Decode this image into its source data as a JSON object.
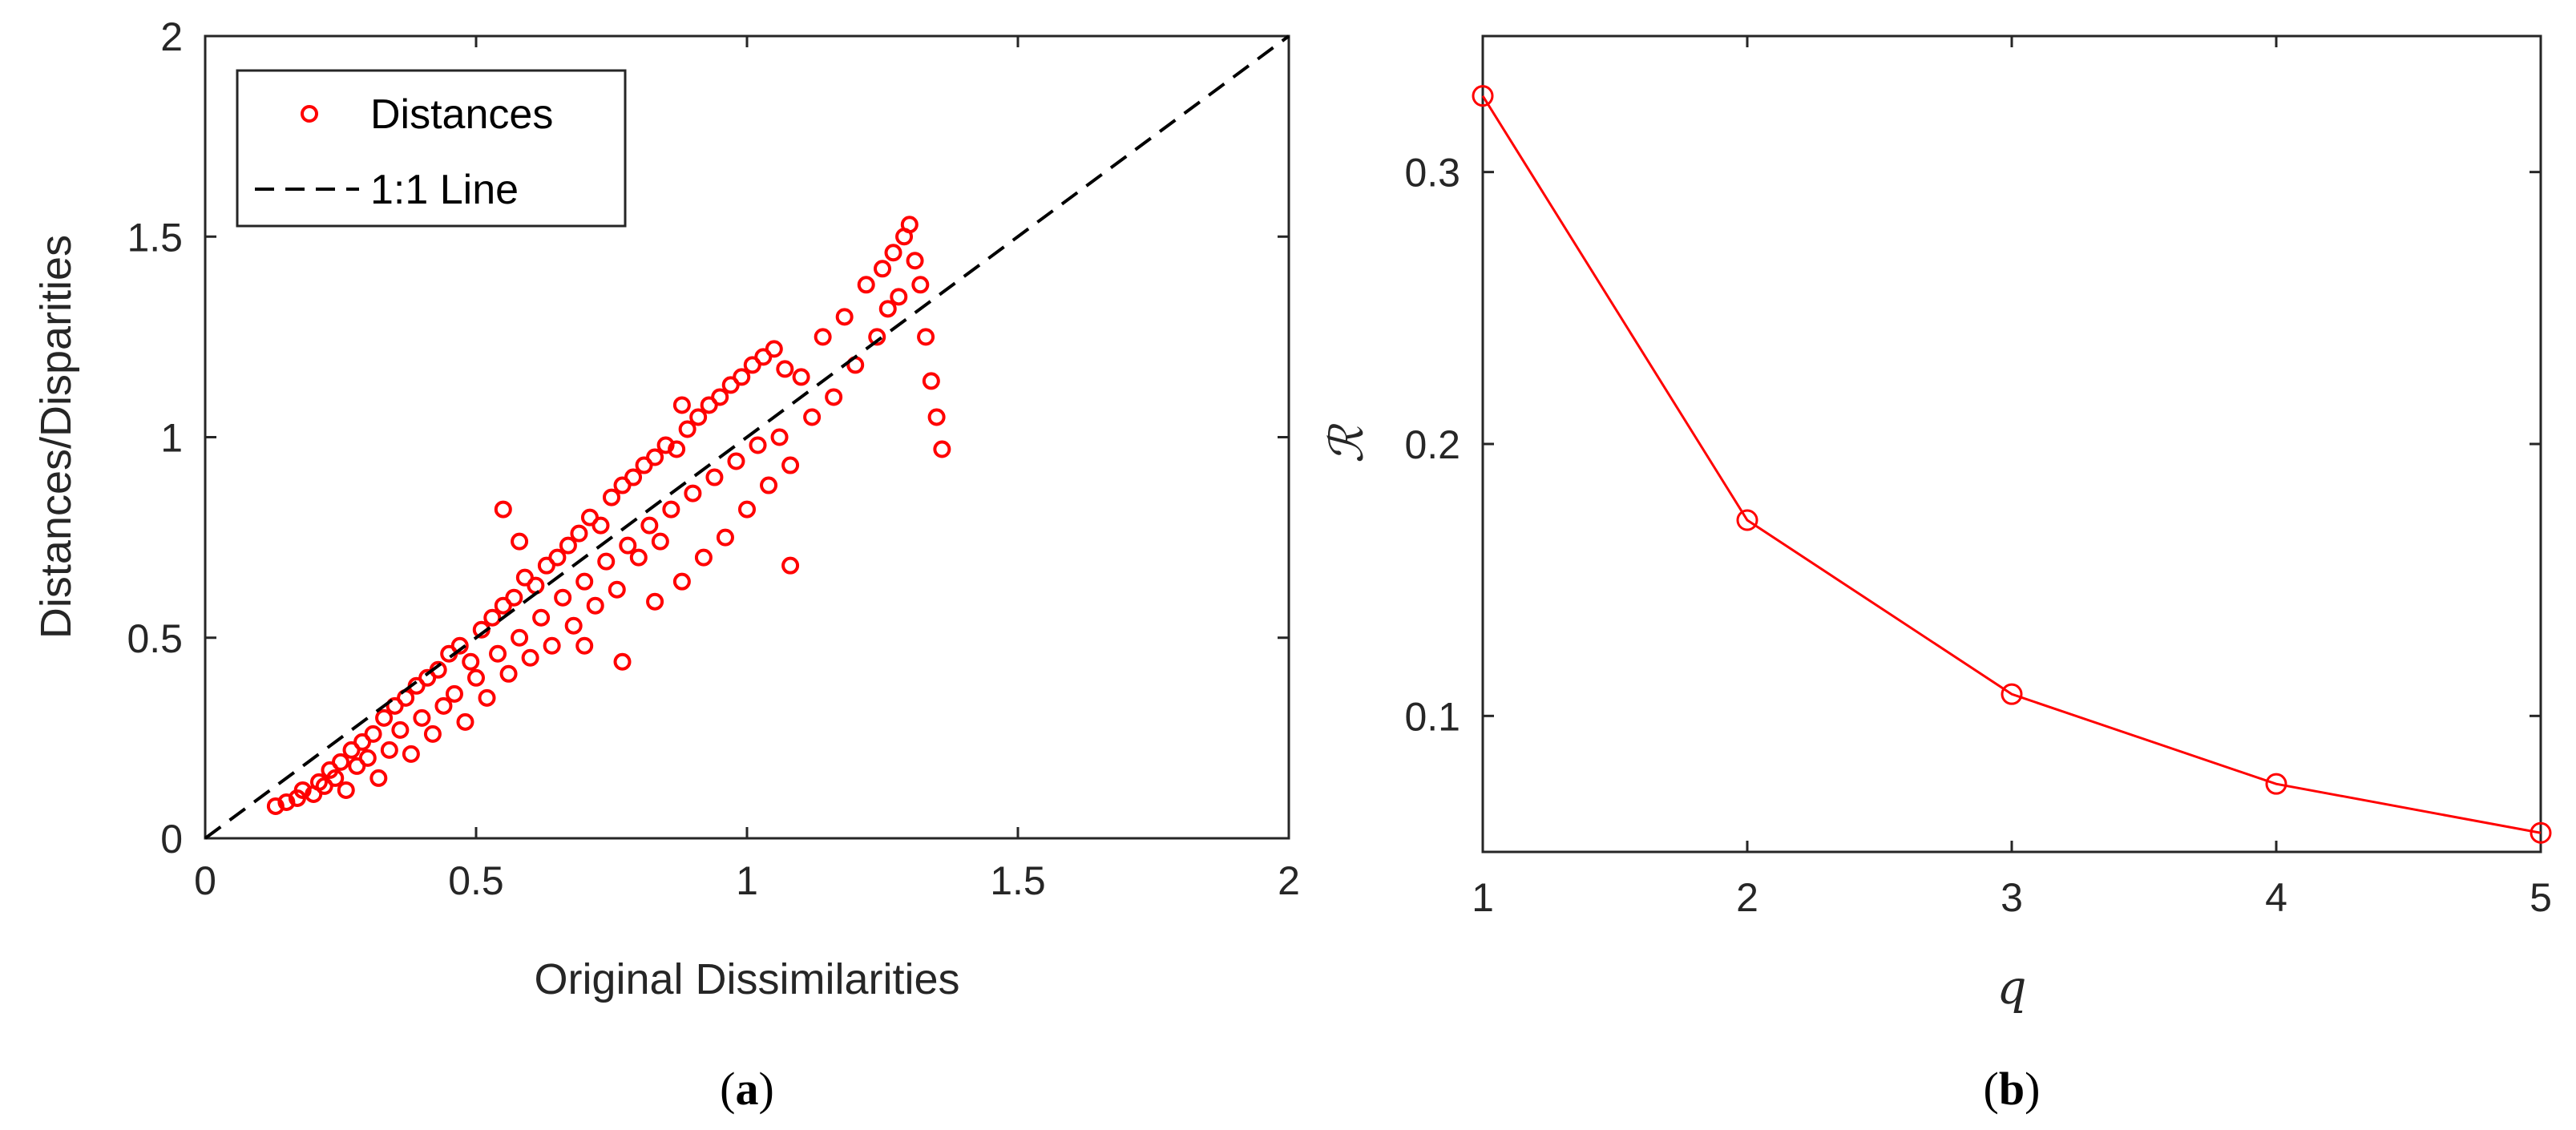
{
  "colors": {
    "series": "#ff0000",
    "axis": "#262626",
    "reference_line": "#000000"
  },
  "chart_data": [
    {
      "type": "scatter",
      "panel_caption": "a",
      "xlabel": "Original Dissimilarities",
      "ylabel": "Distances/Disparities",
      "xlim": [
        0,
        2
      ],
      "ylim": [
        0,
        2
      ],
      "xticks": [
        "0",
        "0.5",
        "1",
        "1.5",
        "2"
      ],
      "yticks": [
        "0",
        "0.5",
        "1",
        "1.5",
        "2"
      ],
      "legend_position": "top-left",
      "grid": false,
      "series": [
        {
          "name": "Distances",
          "marker": "open-circle",
          "color": "#ff0000",
          "points": [
            [
              0.13,
              0.08
            ],
            [
              0.15,
              0.09
            ],
            [
              0.17,
              0.1
            ],
            [
              0.18,
              0.12
            ],
            [
              0.2,
              0.11
            ],
            [
              0.21,
              0.14
            ],
            [
              0.22,
              0.13
            ],
            [
              0.23,
              0.17
            ],
            [
              0.24,
              0.15
            ],
            [
              0.25,
              0.19
            ],
            [
              0.26,
              0.12
            ],
            [
              0.27,
              0.22
            ],
            [
              0.28,
              0.18
            ],
            [
              0.29,
              0.24
            ],
            [
              0.3,
              0.2
            ],
            [
              0.31,
              0.26
            ],
            [
              0.32,
              0.15
            ],
            [
              0.33,
              0.3
            ],
            [
              0.34,
              0.22
            ],
            [
              0.35,
              0.33
            ],
            [
              0.36,
              0.27
            ],
            [
              0.37,
              0.35
            ],
            [
              0.38,
              0.21
            ],
            [
              0.39,
              0.38
            ],
            [
              0.4,
              0.3
            ],
            [
              0.41,
              0.4
            ],
            [
              0.42,
              0.26
            ],
            [
              0.43,
              0.42
            ],
            [
              0.44,
              0.33
            ],
            [
              0.45,
              0.46
            ],
            [
              0.46,
              0.36
            ],
            [
              0.47,
              0.48
            ],
            [
              0.48,
              0.29
            ],
            [
              0.49,
              0.44
            ],
            [
              0.5,
              0.4
            ],
            [
              0.51,
              0.52
            ],
            [
              0.52,
              0.35
            ],
            [
              0.53,
              0.55
            ],
            [
              0.54,
              0.46
            ],
            [
              0.55,
              0.58
            ],
            [
              0.56,
              0.41
            ],
            [
              0.57,
              0.6
            ],
            [
              0.58,
              0.5
            ],
            [
              0.59,
              0.65
            ],
            [
              0.6,
              0.45
            ],
            [
              0.61,
              0.63
            ],
            [
              0.62,
              0.55
            ],
            [
              0.63,
              0.68
            ],
            [
              0.64,
              0.48
            ],
            [
              0.65,
              0.7
            ],
            [
              0.66,
              0.6
            ],
            [
              0.67,
              0.73
            ],
            [
              0.68,
              0.53
            ],
            [
              0.69,
              0.76
            ],
            [
              0.7,
              0.64
            ],
            [
              0.71,
              0.8
            ],
            [
              0.72,
              0.58
            ],
            [
              0.73,
              0.78
            ],
            [
              0.74,
              0.69
            ],
            [
              0.75,
              0.85
            ],
            [
              0.76,
              0.62
            ],
            [
              0.77,
              0.88
            ],
            [
              0.78,
              0.73
            ],
            [
              0.79,
              0.9
            ],
            [
              0.8,
              0.7
            ],
            [
              0.81,
              0.93
            ],
            [
              0.82,
              0.78
            ],
            [
              0.83,
              0.95
            ],
            [
              0.84,
              0.74
            ],
            [
              0.85,
              0.98
            ],
            [
              0.86,
              0.82
            ],
            [
              0.87,
              0.97
            ],
            [
              0.88,
              0.64
            ],
            [
              0.89,
              1.02
            ],
            [
              0.9,
              0.86
            ],
            [
              0.91,
              1.05
            ],
            [
              0.92,
              0.7
            ],
            [
              0.93,
              1.08
            ],
            [
              0.94,
              0.9
            ],
            [
              0.95,
              1.1
            ],
            [
              0.96,
              0.75
            ],
            [
              0.97,
              1.13
            ],
            [
              0.98,
              0.94
            ],
            [
              0.99,
              1.15
            ],
            [
              1.0,
              0.82
            ],
            [
              1.01,
              1.18
            ],
            [
              1.02,
              0.98
            ],
            [
              1.03,
              1.2
            ],
            [
              1.04,
              0.88
            ],
            [
              1.05,
              1.22
            ],
            [
              1.06,
              1.0
            ],
            [
              1.07,
              1.17
            ],
            [
              1.08,
              0.93
            ],
            [
              1.1,
              1.15
            ],
            [
              1.12,
              1.05
            ],
            [
              1.14,
              1.25
            ],
            [
              1.16,
              1.1
            ],
            [
              1.18,
              1.3
            ],
            [
              1.2,
              1.18
            ],
            [
              1.22,
              1.38
            ],
            [
              1.24,
              1.25
            ],
            [
              1.25,
              1.42
            ],
            [
              1.26,
              1.32
            ],
            [
              1.27,
              1.46
            ],
            [
              1.28,
              1.35
            ],
            [
              1.29,
              1.5
            ],
            [
              1.3,
              1.53
            ],
            [
              1.31,
              1.44
            ],
            [
              1.32,
              1.38
            ],
            [
              1.33,
              1.25
            ],
            [
              1.34,
              1.14
            ],
            [
              1.35,
              1.05
            ],
            [
              1.36,
              0.97
            ],
            [
              0.55,
              0.82
            ],
            [
              0.58,
              0.74
            ],
            [
              0.88,
              1.08
            ],
            [
              0.83,
              0.59
            ],
            [
              0.77,
              0.44
            ],
            [
              0.7,
              0.48
            ],
            [
              1.08,
              0.68
            ]
          ]
        },
        {
          "name": "1:1 Line",
          "style": "dashed",
          "color": "#000000",
          "points": [
            [
              0,
              0
            ],
            [
              2,
              2
            ]
          ]
        }
      ]
    },
    {
      "type": "line",
      "panel_caption": "b",
      "xlabel": "q",
      "ylabel": "ℛ",
      "xlim": [
        1,
        5
      ],
      "ylim": [
        0.05,
        0.35
      ],
      "xticks": [
        "1",
        "2",
        "3",
        "4",
        "5"
      ],
      "yticks": [
        "0.1",
        "0.2",
        "0.3"
      ],
      "grid": false,
      "series": [
        {
          "marker": "open-circle",
          "color": "#ff0000",
          "x": [
            1,
            2,
            3,
            4,
            5
          ],
          "y": [
            0.328,
            0.172,
            0.108,
            0.075,
            0.057
          ]
        }
      ]
    }
  ]
}
